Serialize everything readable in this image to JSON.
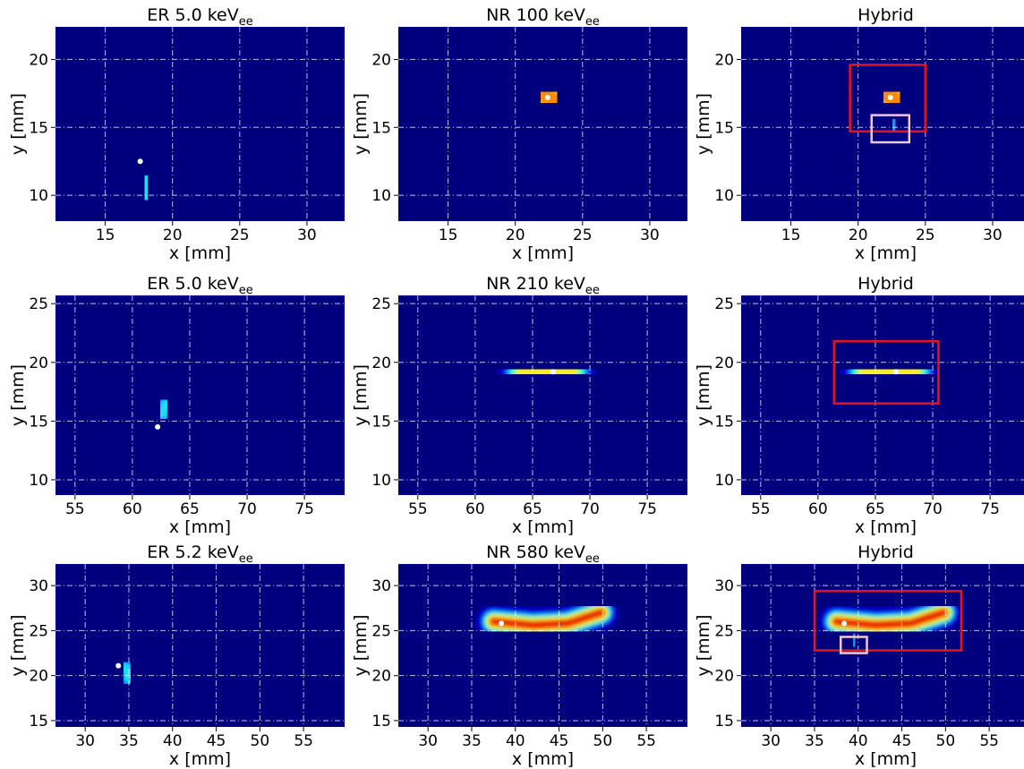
{
  "chart_data": [
    {
      "type": "heatmap",
      "title": "ER 5.0 keV",
      "title_sub": "ee",
      "xlabel": "x [mm]",
      "ylabel": "y [mm]",
      "xlim": [
        11.3,
        32.8
      ],
      "ylim": [
        8.1,
        22.4
      ],
      "xticks": [
        15,
        20,
        25,
        30
      ],
      "yticks": [
        10,
        15,
        20
      ],
      "grid": true,
      "background": "#00007f",
      "tracks": [
        {
          "x": [
            18.0,
            18.1
          ],
          "y": [
            10.1,
            11.0
          ],
          "width": 2.6,
          "peak": 0.55
        }
      ],
      "points": [
        {
          "x": 17.6,
          "y": 12.5
        }
      ],
      "boxes": []
    },
    {
      "type": "heatmap",
      "title": "NR 100 keV",
      "title_sub": "ee",
      "xlabel": "x [mm]",
      "ylabel": "y [mm]",
      "xlim": [
        11.3,
        32.8
      ],
      "ylim": [
        8.1,
        22.4
      ],
      "xticks": [
        15,
        20,
        25,
        30
      ],
      "yticks": [
        10,
        15,
        20
      ],
      "grid": true,
      "background": "#00007f",
      "tracks": [
        {
          "x": [
            22.2,
            22.8
          ],
          "y": [
            17.4,
            17.0
          ],
          "width": 4.2,
          "peak": 0.95
        }
      ],
      "points": [
        {
          "x": 22.4,
          "y": 17.2
        }
      ],
      "boxes": []
    },
    {
      "type": "heatmap",
      "title": "Hybrid",
      "xlabel": "x [mm]",
      "ylabel": "y [mm]",
      "xlim": [
        11.3,
        32.8
      ],
      "ylim": [
        8.1,
        22.4
      ],
      "xticks": [
        15,
        20,
        25,
        30
      ],
      "yticks": [
        10,
        15,
        20
      ],
      "grid": true,
      "background": "#00007f",
      "tracks": [
        {
          "x": [
            22.6,
            22.7
          ],
          "y": [
            15.0,
            15.4
          ],
          "width": 2.2,
          "peak": 0.45
        },
        {
          "x": [
            22.2,
            22.8
          ],
          "y": [
            17.4,
            17.0
          ],
          "width": 4.2,
          "peak": 0.95
        }
      ],
      "points": [
        {
          "x": 22.4,
          "y": 17.2
        }
      ],
      "boxes": [
        {
          "x": [
            19.4,
            25.0
          ],
          "y": [
            14.7,
            19.6
          ],
          "color": "#e8141c"
        },
        {
          "x": [
            21.0,
            23.8
          ],
          "y": [
            13.9,
            15.9
          ],
          "color": "#f3c6d4"
        }
      ]
    },
    {
      "type": "heatmap",
      "title": "ER 5.0 keV",
      "title_sub": "ee",
      "xlabel": "x [mm]",
      "ylabel": "y [mm]",
      "xlim": [
        53.3,
        78.5
      ],
      "ylim": [
        8.7,
        25.7
      ],
      "xticks": [
        55,
        60,
        65,
        70,
        75
      ],
      "yticks": [
        10,
        15,
        20,
        25
      ],
      "grid": true,
      "background": "#00007f",
      "tracks": [
        {
          "x": [
            62.6,
            62.9
          ],
          "y": [
            15.6,
            16.4
          ],
          "width": 1.9,
          "peak": 0.55
        }
      ],
      "points": [
        {
          "x": 62.2,
          "y": 14.5
        }
      ],
      "boxes": []
    },
    {
      "type": "heatmap",
      "title": "NR 210 keV",
      "title_sub": "ee",
      "xlabel": "x [mm]",
      "ylabel": "y [mm]",
      "xlim": [
        53.3,
        78.5
      ],
      "ylim": [
        8.7,
        25.7
      ],
      "xticks": [
        55,
        60,
        65,
        70,
        75
      ],
      "yticks": [
        10,
        15,
        20,
        25
      ],
      "grid": true,
      "background": "#00007f",
      "tracks": [
        {
          "x": [
            64.1,
            66.5,
            68.4
          ],
          "y": [
            19.1,
            19.2,
            19.3
          ],
          "width": 3.4,
          "peak": 0.82
        }
      ],
      "points": [
        {
          "x": 66.8,
          "y": 19.2
        }
      ],
      "boxes": []
    },
    {
      "type": "heatmap",
      "title": "Hybrid",
      "xlabel": "x [mm]",
      "ylabel": "y [mm]",
      "xlim": [
        53.3,
        78.5
      ],
      "ylim": [
        8.7,
        25.7
      ],
      "xticks": [
        55,
        60,
        65,
        70,
        75
      ],
      "yticks": [
        10,
        15,
        20,
        25
      ],
      "grid": true,
      "background": "#00007f",
      "tracks": [
        {
          "x": [
            64.1,
            66.5,
            68.4
          ],
          "y": [
            19.1,
            19.2,
            19.3
          ],
          "width": 3.4,
          "peak": 0.82
        }
      ],
      "points": [
        {
          "x": 66.8,
          "y": 19.2
        }
      ],
      "boxes": [
        {
          "x": [
            61.4,
            70.5
          ],
          "y": [
            16.5,
            21.8
          ],
          "color": "#e8141c"
        }
      ]
    },
    {
      "type": "heatmap",
      "title": "ER 5.2 keV",
      "title_sub": "ee",
      "xlabel": "x [mm]",
      "ylabel": "y [mm]",
      "xlim": [
        26.6,
        59.7
      ],
      "ylim": [
        14.3,
        32.4
      ],
      "xticks": [
        30,
        35,
        40,
        45,
        50,
        55
      ],
      "yticks": [
        15,
        20,
        25,
        30
      ],
      "grid": true,
      "background": "#00007f",
      "tracks": [
        {
          "x": [
            34.6,
            35.0
          ],
          "y": [
            20.9,
            19.7
          ],
          "width": 2.2,
          "peak": 0.55
        }
      ],
      "points": [
        {
          "x": 33.8,
          "y": 21.1
        }
      ],
      "boxes": []
    },
    {
      "type": "heatmap",
      "title": "NR 580 keV",
      "title_sub": "ee",
      "xlabel": "x [mm]",
      "ylabel": "y [mm]",
      "xlim": [
        26.6,
        59.7
      ],
      "ylim": [
        14.3,
        32.4
      ],
      "xticks": [
        30,
        35,
        40,
        45,
        50,
        55
      ],
      "yticks": [
        15,
        20,
        25,
        30
      ],
      "grid": true,
      "background": "#00007f",
      "tracks": [
        {
          "x": [
            37.5,
            42.0,
            46.0,
            49.8
          ],
          "y": [
            26.0,
            25.6,
            25.8,
            27.0
          ],
          "width": 3.0,
          "peak": 1.0
        }
      ],
      "points": [
        {
          "x": 38.4,
          "y": 25.8
        }
      ],
      "boxes": []
    },
    {
      "type": "heatmap",
      "title": "Hybrid",
      "xlabel": "x [mm]",
      "ylabel": "y [mm]",
      "xlim": [
        26.6,
        59.7
      ],
      "ylim": [
        14.3,
        32.4
      ],
      "xticks": [
        30,
        35,
        40,
        45,
        50,
        55
      ],
      "yticks": [
        15,
        20,
        25,
        30
      ],
      "grid": true,
      "background": "#00007f",
      "tracks": [
        {
          "x": [
            39.5,
            39.6
          ],
          "y": [
            23.6,
            24.3
          ],
          "width": 2.0,
          "peak": 0.45
        },
        {
          "x": [
            37.5,
            42.0,
            46.0,
            49.8
          ],
          "y": [
            26.0,
            25.6,
            25.8,
            27.0
          ],
          "width": 3.0,
          "peak": 1.0
        }
      ],
      "points": [
        {
          "x": 38.4,
          "y": 25.8
        }
      ],
      "boxes": [
        {
          "x": [
            35.0,
            51.8
          ],
          "y": [
            22.8,
            29.4
          ],
          "color": "#e8141c"
        },
        {
          "x": [
            38.0,
            41.0
          ],
          "y": [
            22.5,
            24.3
          ],
          "color": "#f3c6d4"
        }
      ]
    }
  ]
}
